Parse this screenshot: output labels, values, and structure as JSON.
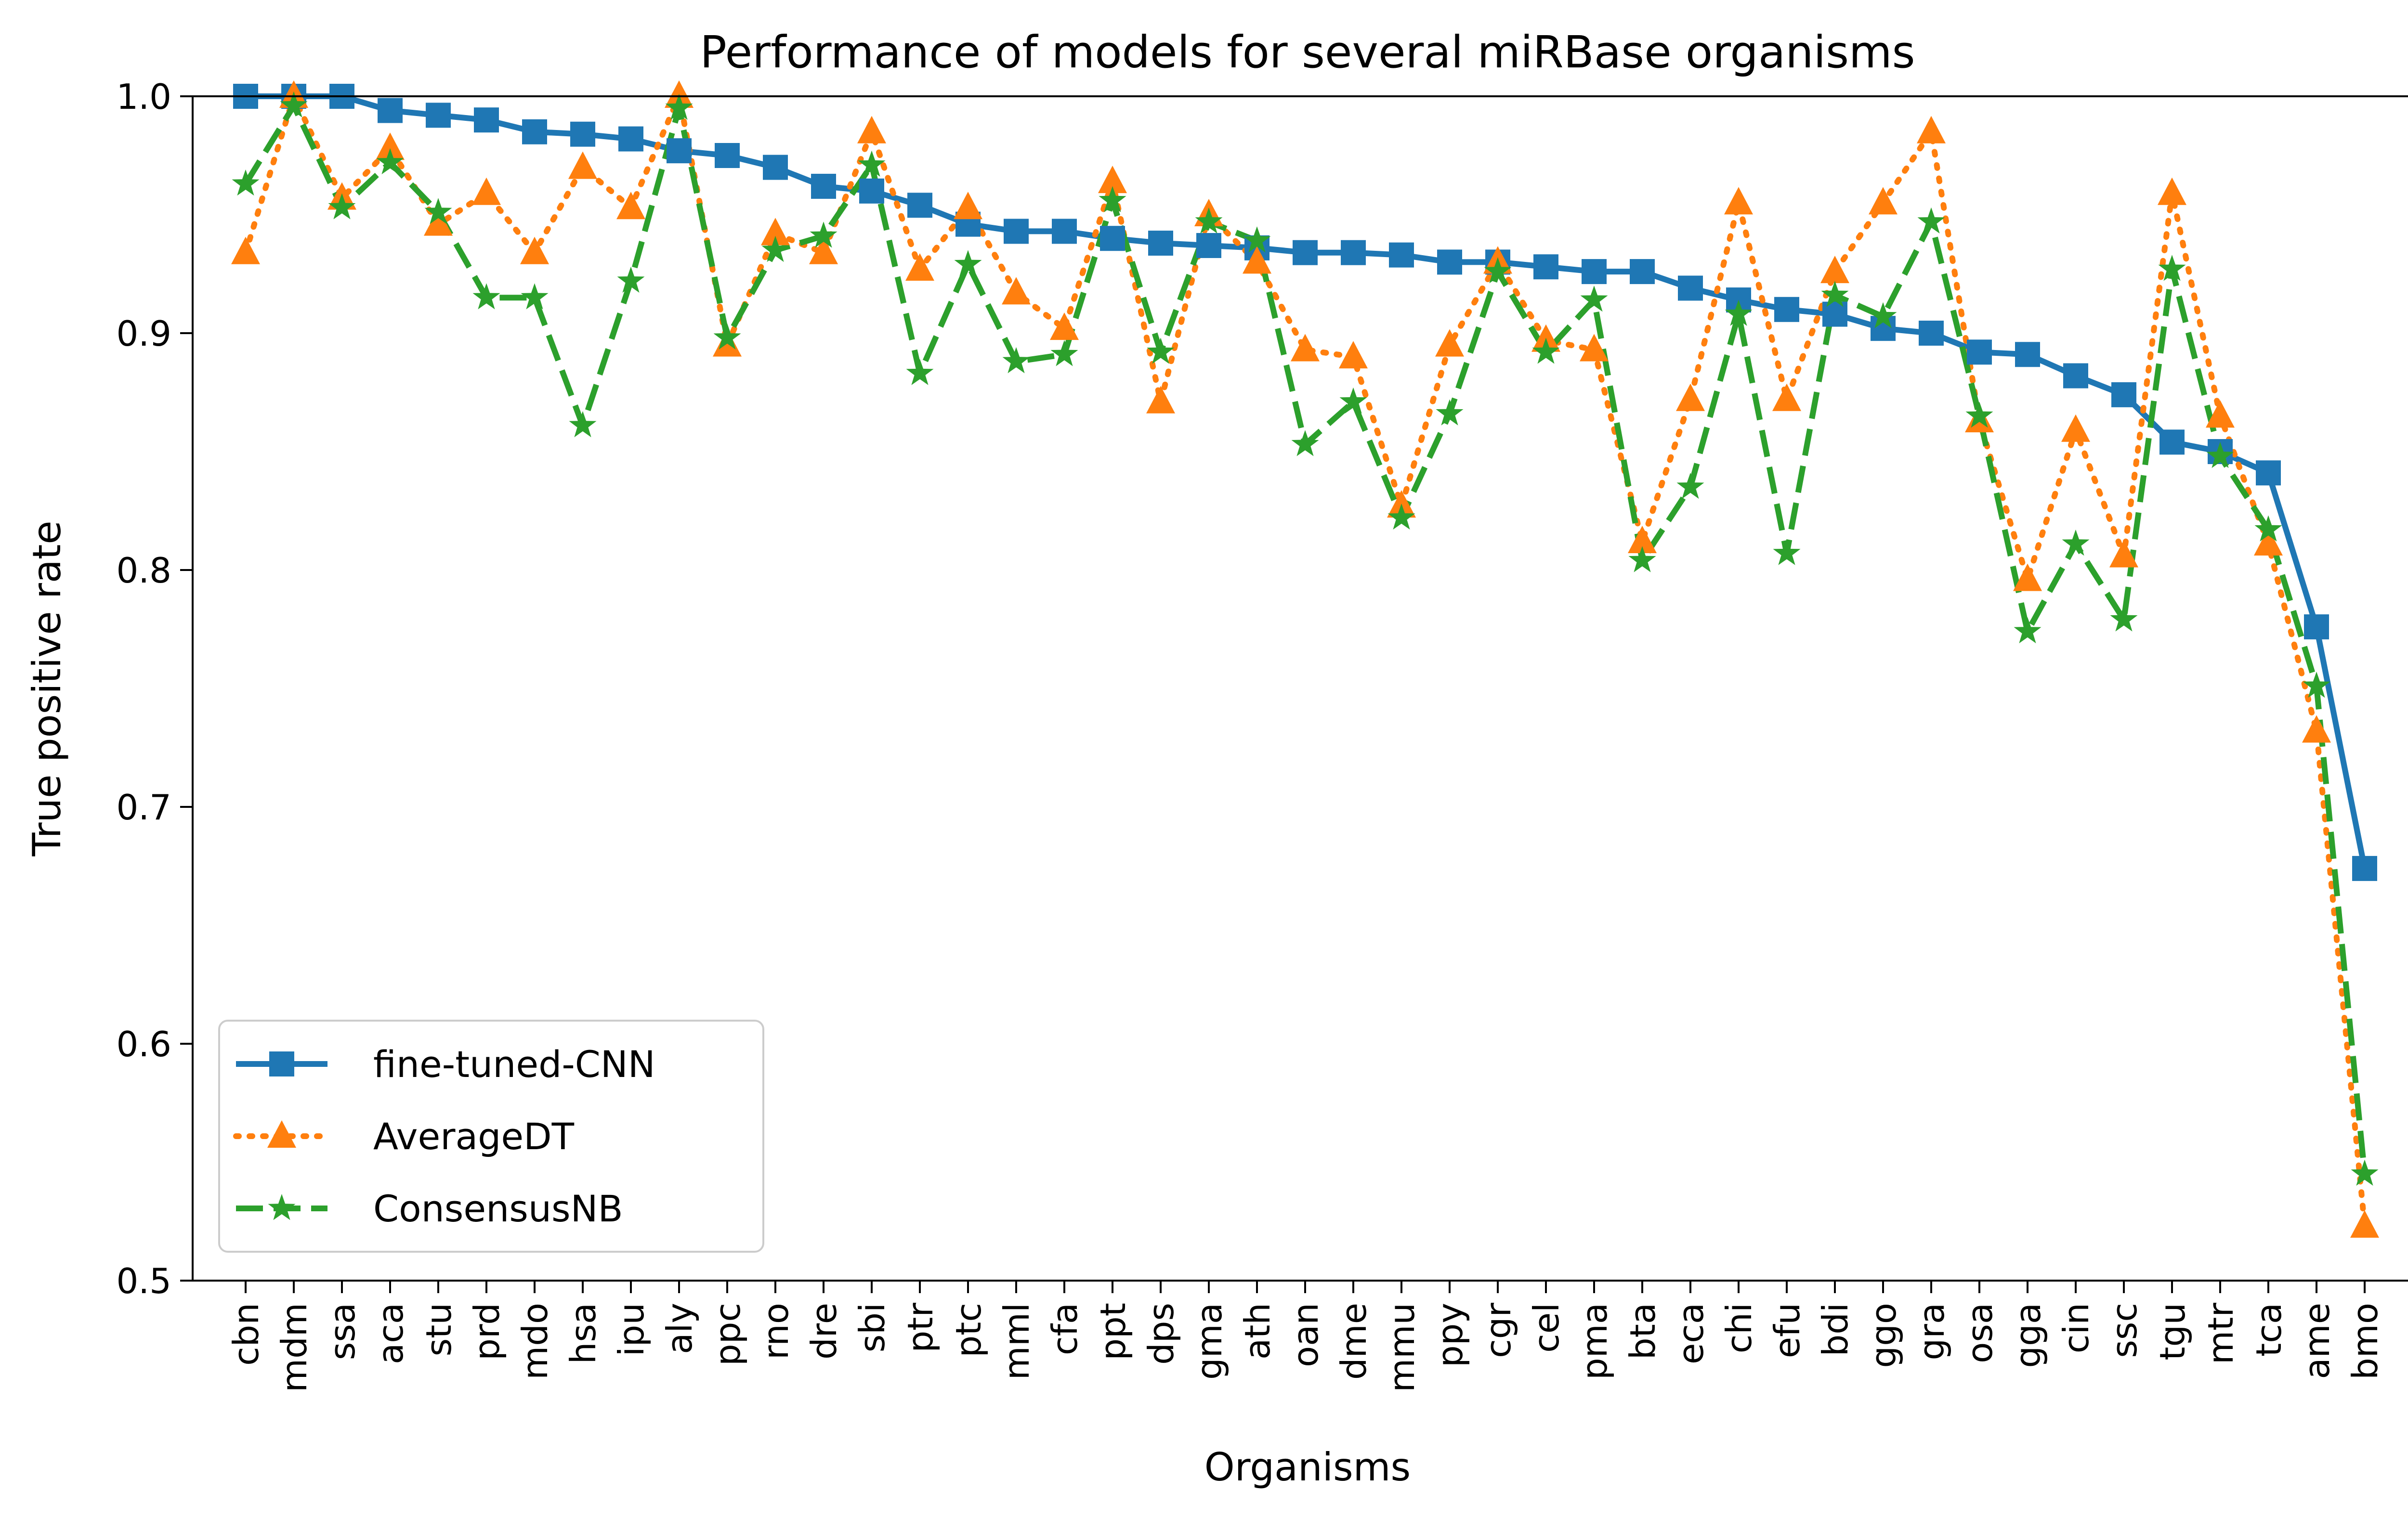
{
  "chart_data": {
    "type": "line",
    "title": "Performance of models for several miRBase organisms",
    "xlabel": "Organisms",
    "ylabel": "True positive rate",
    "ylim": [
      0.5,
      1.0
    ],
    "yticks": [
      "0.5",
      "0.6",
      "0.7",
      "0.8",
      "0.9",
      "1.0"
    ],
    "grid": false,
    "legend_position": "lower-left",
    "categories": [
      "cbn",
      "mdm",
      "ssa",
      "aca",
      "stu",
      "prd",
      "mdo",
      "hsa",
      "ipu",
      "aly",
      "ppc",
      "rno",
      "dre",
      "sbi",
      "ptr",
      "ptc",
      "mml",
      "cfa",
      "ppt",
      "dps",
      "gma",
      "ath",
      "oan",
      "dme",
      "mmu",
      "ppy",
      "cgr",
      "cel",
      "pma",
      "bta",
      "eca",
      "chi",
      "efu",
      "bdi",
      "ggo",
      "gra",
      "osa",
      "gga",
      "cin",
      "ssc",
      "tgu",
      "mtr",
      "tca",
      "ame",
      "bmo"
    ],
    "series": [
      {
        "name": "fine-tuned-CNN",
        "color": "#1f77b4",
        "line_style": "solid",
        "marker": "square",
        "values": [
          1.0,
          1.0,
          1.0,
          0.994,
          0.992,
          0.99,
          0.985,
          0.984,
          0.982,
          0.977,
          0.975,
          0.97,
          0.962,
          0.96,
          0.954,
          0.946,
          0.943,
          0.943,
          0.94,
          0.938,
          0.937,
          0.936,
          0.934,
          0.934,
          0.933,
          0.93,
          0.93,
          0.928,
          0.926,
          0.926,
          0.919,
          0.914,
          0.91,
          0.908,
          0.902,
          0.9,
          0.892,
          0.891,
          0.882,
          0.874,
          0.854,
          0.85,
          0.841,
          0.776,
          0.674
        ]
      },
      {
        "name": "AverageDT",
        "color": "#ff7f0e",
        "line_style": "dotted",
        "marker": "triangle",
        "values": [
          0.934,
          1.0,
          0.957,
          0.978,
          0.946,
          0.959,
          0.934,
          0.97,
          0.953,
          1.0,
          0.895,
          0.942,
          0.934,
          0.985,
          0.927,
          0.953,
          0.917,
          0.902,
          0.964,
          0.871,
          0.95,
          0.93,
          0.893,
          0.89,
          0.827,
          0.895,
          0.93,
          0.897,
          0.893,
          0.812,
          0.872,
          0.955,
          0.872,
          0.926,
          0.955,
          0.985,
          0.863,
          0.796,
          0.859,
          0.806,
          0.959,
          0.865,
          0.811,
          0.732,
          0.523
        ]
      },
      {
        "name": "ConsensusNB",
        "color": "#2ca02c",
        "line_style": "dashed",
        "marker": "star",
        "values": [
          0.963,
          0.996,
          0.953,
          0.972,
          0.951,
          0.915,
          0.915,
          0.861,
          0.922,
          0.995,
          0.898,
          0.935,
          0.941,
          0.971,
          0.883,
          0.929,
          0.888,
          0.891,
          0.956,
          0.892,
          0.947,
          0.939,
          0.853,
          0.871,
          0.822,
          0.866,
          0.926,
          0.892,
          0.914,
          0.804,
          0.835,
          0.908,
          0.807,
          0.916,
          0.907,
          0.947,
          0.865,
          0.774,
          0.811,
          0.779,
          0.927,
          0.848,
          0.817,
          0.751,
          0.545
        ]
      }
    ]
  }
}
